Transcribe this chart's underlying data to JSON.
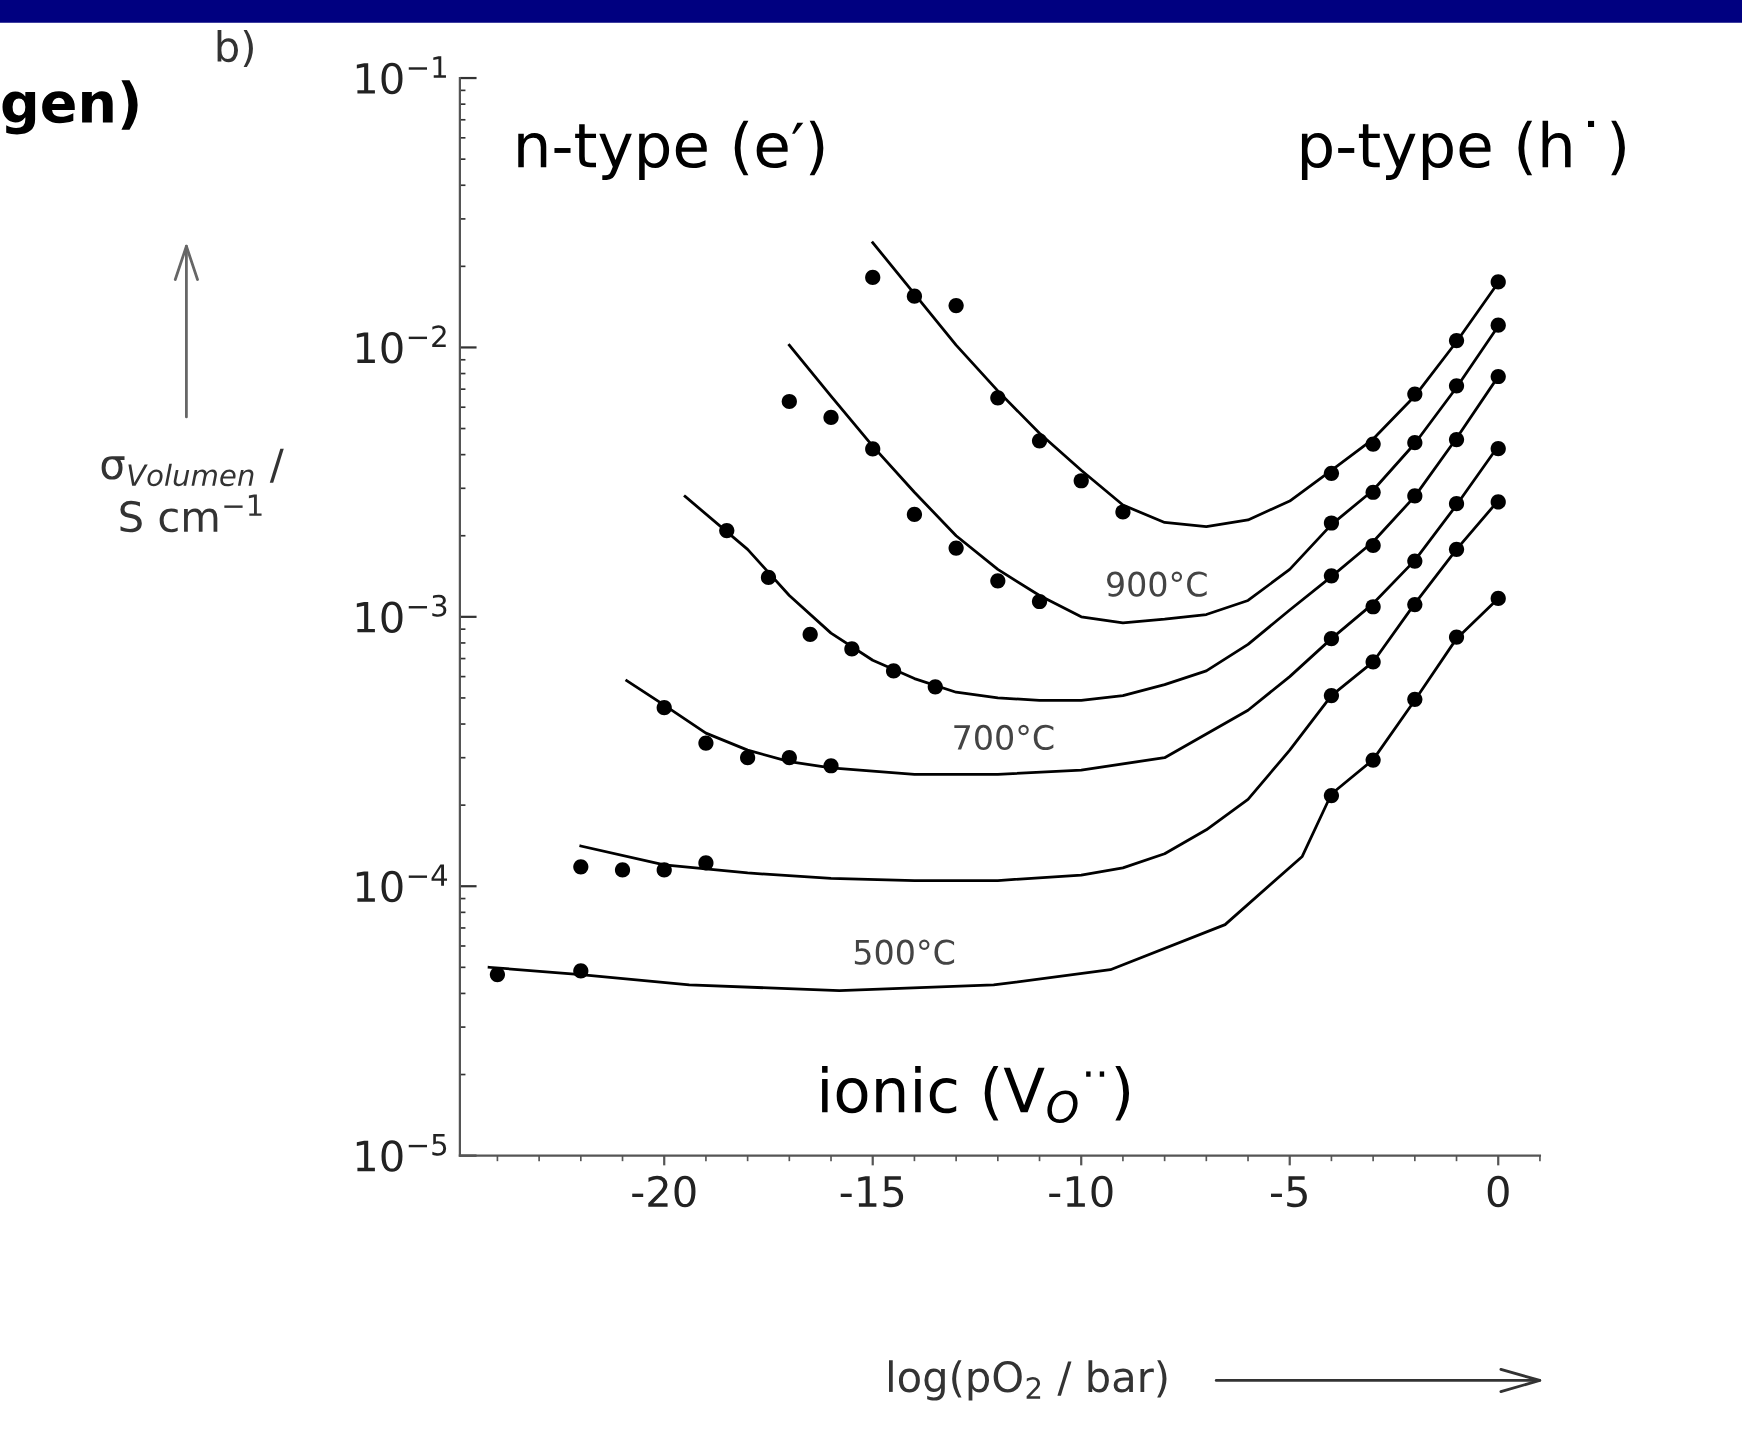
{
  "chart_data": {
    "type": "line",
    "xlabel": "log(pO$_{2}$ / bar)",
    "ylabel": "σ$_{Volumen}$ /\nS cm$^{−1}$",
    "log": "y",
    "xlim": [
      -24.9,
      1
    ],
    "ylim": [
      1e-05,
      0.1
    ],
    "xticks": [
      -20,
      -15,
      -10,
      -5,
      0
    ],
    "yticks": [
      {
        "value": 1e-05,
        "label": "10$^{−5}$"
      },
      {
        "value": 0.0001,
        "label": "10$^{−4}$"
      },
      {
        "value": 0.001,
        "label": "10$^{−3}$"
      },
      {
        "value": 0.01,
        "label": "10$^{−2}$"
      },
      {
        "value": 0.1,
        "label": "10$^{−1}$"
      }
    ],
    "grid": false,
    "legend": false,
    "line_style": "solid",
    "series": [
      {
        "color": "#000000",
        "x": [
          -15,
          -14,
          -13,
          -12,
          -11,
          -10,
          -9,
          -8,
          -7,
          -6,
          -5,
          -4,
          -3,
          -2,
          -1,
          0
        ],
        "values": [
          0.0245,
          0.0158,
          0.0102,
          0.0069,
          0.0048,
          0.0035,
          0.0026,
          0.00224,
          0.00216,
          0.00229,
          0.00269,
          0.0035,
          0.00457,
          0.0066,
          0.0105,
          0.0174
        ]
      },
      {
        "color": "#000000",
        "x": [
          -17,
          -16,
          -15,
          -14,
          -13,
          -12,
          -11,
          -10,
          -9,
          -8,
          -7,
          -6,
          -5,
          -4,
          -3,
          -2,
          -1,
          0
        ],
        "values": [
          0.0102,
          0.0066,
          0.0043,
          0.0029,
          0.002,
          0.0015,
          0.0012,
          0.001,
          0.00095,
          0.00098,
          0.00102,
          0.00115,
          0.0015,
          0.0022,
          0.00295,
          0.0044,
          0.0071,
          0.012
        ]
      },
      {
        "color": "#000000",
        "x": [
          -19.5,
          -18,
          -17,
          -16,
          -15,
          -14,
          -13,
          -12,
          -11,
          -10,
          -9,
          -8,
          -7,
          -6,
          -5,
          -4,
          -3,
          -2,
          -1,
          0
        ],
        "values": [
          0.0028,
          0.00178,
          0.0012,
          0.00087,
          0.00069,
          0.00059,
          0.000525,
          0.0005,
          0.00049,
          0.00049,
          0.00051,
          0.00056,
          0.00063,
          0.00079,
          0.00106,
          0.00141,
          0.0019,
          0.0028,
          0.0046,
          0.0078
        ]
      },
      {
        "color": "#000000",
        "x": [
          -20.9,
          -20,
          -19,
          -18,
          -17,
          -16,
          -14,
          -12,
          -10,
          -8,
          -6,
          -5,
          -4,
          -3,
          -2,
          -1,
          0
        ],
        "values": [
          0.00058,
          0.00047,
          0.00037,
          0.00032,
          0.00029,
          0.000275,
          0.00026,
          0.00026,
          0.00027,
          0.0003,
          0.00045,
          0.0006,
          0.00083,
          0.00112,
          0.00162,
          0.0026,
          0.0043
        ]
      },
      {
        "color": "#000000",
        "x": [
          -22,
          -20,
          -18,
          -16,
          -14,
          -12,
          -10,
          -9,
          -8,
          -7,
          -6,
          -5,
          -4,
          -3,
          -2,
          -1,
          0
        ],
        "values": [
          0.000141,
          0.00012,
          0.000112,
          0.000107,
          0.000105,
          0.000105,
          0.00011,
          0.000117,
          0.000132,
          0.000162,
          0.00021,
          0.00032,
          0.00051,
          0.00068,
          0.00112,
          0.00178,
          0.0027
        ]
      },
      {
        "color": "#000000",
        "x": [
          -24.2,
          -22,
          -19.4,
          -15.8,
          -12.1,
          -9.3,
          -6.55,
          -4.7,
          -4,
          -3,
          -2,
          -1,
          0
        ],
        "values": [
          5e-05,
          4.7e-05,
          4.3e-05,
          4.1e-05,
          4.3e-05,
          4.9e-05,
          7.2e-05,
          0.000129,
          0.00022,
          0.000295,
          0.00049,
          0.00083,
          0.00117
        ]
      },
      {
        "type": "scatter",
        "marker": "circle",
        "color": "#000000",
        "x": [
          -15,
          -14,
          -13,
          -12,
          -11,
          -10,
          -9,
          -4,
          -3,
          -2,
          -1,
          0
        ],
        "values": [
          0.0182,
          0.0155,
          0.0143,
          0.0065,
          0.0045,
          0.0032,
          0.00245,
          0.00341,
          0.00438,
          0.00671,
          0.0106,
          0.0175
        ]
      },
      {
        "type": "scatter",
        "marker": "circle",
        "color": "#000000",
        "x": [
          -17,
          -16,
          -15,
          -14,
          -13,
          -12,
          -11,
          -4,
          -3,
          -2,
          -1,
          0
        ],
        "values": [
          0.0063,
          0.0055,
          0.0042,
          0.0024,
          0.0018,
          0.00136,
          0.00114,
          0.00223,
          0.0029,
          0.00443,
          0.0072,
          0.0121
        ]
      },
      {
        "type": "scatter",
        "marker": "circle",
        "color": "#000000",
        "x": [
          -18.5,
          -17.5,
          -16.5,
          -15.5,
          -14.5,
          -13.5,
          -4,
          -3,
          -2,
          -1,
          0
        ],
        "values": [
          0.00209,
          0.0014,
          0.00086,
          0.00076,
          0.00063,
          0.00055,
          0.00142,
          0.00184,
          0.00281,
          0.00455,
          0.0078
        ]
      },
      {
        "type": "scatter",
        "marker": "circle",
        "color": "#000000",
        "x": [
          -20,
          -19,
          -18,
          -17,
          -16,
          -4,
          -3,
          -2,
          -1,
          0
        ],
        "values": [
          0.00046,
          0.00034,
          0.0003,
          0.0003,
          0.00028,
          0.00083,
          0.00109,
          0.00161,
          0.00263,
          0.00421
        ]
      },
      {
        "type": "scatter",
        "marker": "circle",
        "color": "#000000",
        "x": [
          -22,
          -21,
          -20,
          -19,
          -4,
          -3,
          -2,
          -1,
          0
        ],
        "values": [
          0.000118,
          0.000115,
          0.000115,
          0.000122,
          0.00051,
          0.00068,
          0.00111,
          0.00178,
          0.00267
        ]
      },
      {
        "type": "scatter",
        "marker": "circle",
        "color": "#000000",
        "x": [
          -24,
          -22,
          -4,
          -3,
          -2,
          -1,
          0
        ],
        "values": [
          4.7e-05,
          4.85e-05,
          0.000217,
          0.000294,
          0.000494,
          0.000841,
          0.00117
        ]
      }
    ],
    "annotations": [
      "900°C",
      "700°C",
      "500°C",
      "b)",
      "gen)",
      "n-type (e′)",
      "p-type (h˙)",
      "ionic (V$_{O}$$^{··}$)"
    ]
  }
}
